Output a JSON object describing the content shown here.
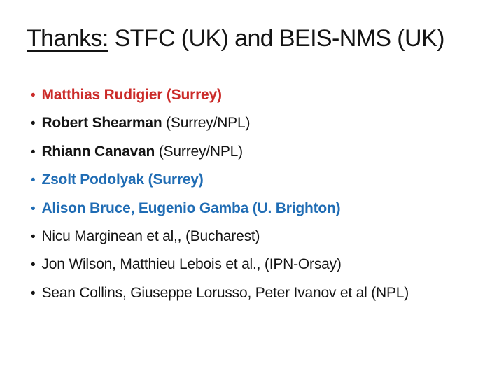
{
  "title": {
    "underlined": "Thanks:",
    "rest": " STFC (UK) and BEIS-NMS (UK)"
  },
  "colors": {
    "red": "#cb2b29",
    "blue": "#1f6cb4",
    "black": "#141414"
  },
  "bullet_glyph": "•",
  "bullets": [
    {
      "color": "red",
      "segments": [
        {
          "text": "Matthias Rudigier (Surrey)",
          "bold": true
        }
      ]
    },
    {
      "color": "black",
      "segments": [
        {
          "text": "Robert Shearman",
          "bold": true
        },
        {
          "text": " (Surrey/NPL)",
          "bold": false
        }
      ]
    },
    {
      "color": "black",
      "segments": [
        {
          "text": "Rhiann Canavan",
          "bold": true
        },
        {
          "text": " (Surrey/NPL)",
          "bold": false
        }
      ]
    },
    {
      "color": "blue",
      "segments": [
        {
          "text": "Zsolt Podolyak (Surrey)",
          "bold": true
        }
      ]
    },
    {
      "color": "blue",
      "segments": [
        {
          "text": "Alison Bruce, Eugenio Gamba (U. Brighton)",
          "bold": true
        }
      ]
    },
    {
      "color": "black",
      "segments": [
        {
          "text": "Nicu Marginean et al,, (Bucharest)",
          "bold": false
        }
      ]
    },
    {
      "color": "black",
      "segments": [
        {
          "text": "Jon Wilson, Matthieu Lebois et al., (IPN-Orsay)",
          "bold": false
        }
      ]
    },
    {
      "color": "black",
      "segments": [
        {
          "text": "Sean Collins, Giuseppe Lorusso, Peter Ivanov et al (NPL)",
          "bold": false
        }
      ]
    }
  ]
}
